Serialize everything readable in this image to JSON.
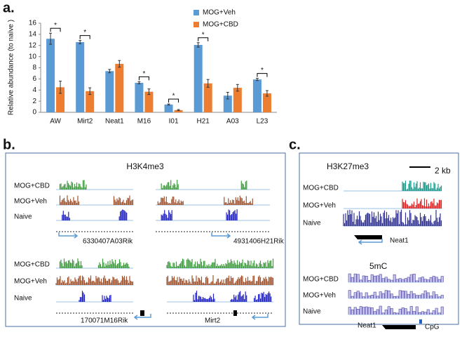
{
  "chart_data": {
    "type": "bar",
    "panel_label": "a.",
    "y_label": "Relative abundance (to naïve )",
    "categories": [
      "AW",
      "Mirt2",
      "Neat1",
      "M16",
      "I01",
      "H21",
      "A03",
      "L23"
    ],
    "series": [
      {
        "name": "MOG+Veh",
        "color": "#5b9bd5",
        "values": [
          13.2,
          12.6,
          7.4,
          5.3,
          1.4,
          12.1,
          3.0,
          5.9
        ],
        "errors": [
          1.0,
          0.3,
          0.3,
          0.2,
          0.1,
          0.4,
          0.6,
          0.2
        ]
      },
      {
        "name": "MOG+CBD",
        "color": "#ed7d31",
        "values": [
          4.5,
          3.8,
          8.7,
          3.7,
          0.4,
          5.2,
          4.4,
          3.4
        ],
        "errors": [
          1.1,
          0.6,
          0.6,
          0.5,
          0.1,
          0.7,
          0.6,
          0.5
        ]
      }
    ],
    "significance_labels": [
      "*",
      "*",
      null,
      "*",
      "*",
      "*",
      null,
      "*"
    ],
    "ylim": [
      0,
      16
    ],
    "yticks": [
      0,
      2,
      4,
      6,
      8,
      10,
      12,
      14,
      16
    ],
    "grid": false,
    "legend": "top-right"
  },
  "panel_b": {
    "label": "b.",
    "title": "H3K4me3",
    "rows": [
      {
        "tracks": [
          "MOG+CBD",
          "MOG+Veh",
          "Naive"
        ],
        "genes": [
          "6330407A03Rik",
          "4931406H21Rik"
        ]
      },
      {
        "tracks": [
          "MOG+CBD",
          "MOG+Veh",
          "Naive"
        ],
        "genes": [
          "170071M16Rik",
          "Mirt2"
        ]
      }
    ]
  },
  "panel_c": {
    "label": "c.",
    "sections": [
      {
        "title": "H3K27me3",
        "scale": "2 kb",
        "tracks": [
          "MOG+CBD",
          "MOG+Veh",
          "Naive"
        ],
        "gene": "Neat1"
      },
      {
        "title": "5mC",
        "tracks": [
          "MOG+CBD",
          "MOG+Veh",
          "Naive"
        ],
        "gene": "Neat1",
        "feature": "CpG"
      }
    ]
  }
}
